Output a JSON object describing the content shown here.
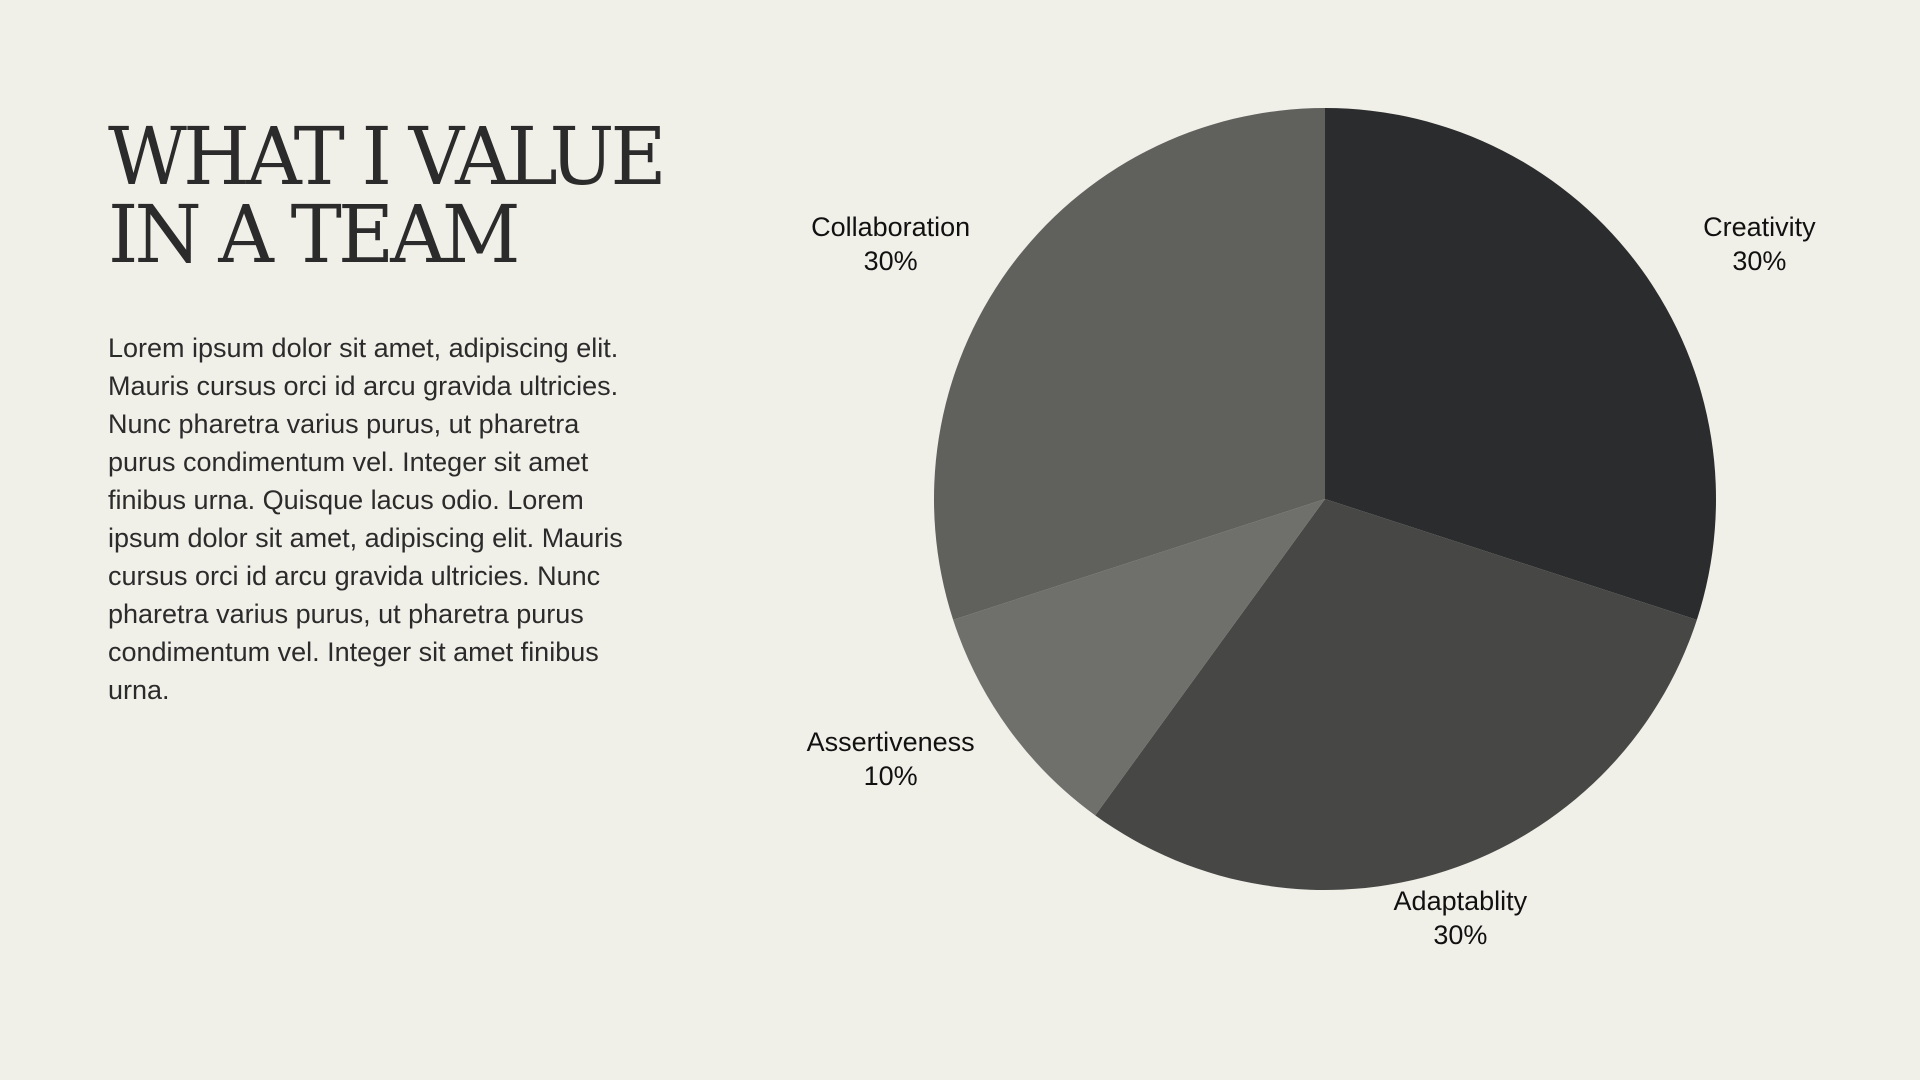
{
  "slide": {
    "title_lines": [
      "WHAT I VALUE",
      "IN A TEAM"
    ],
    "body": "Lorem ipsum dolor sit amet, adipiscing elit. Mauris cursus orci id arcu gravida ultricies. Nunc pharetra varius purus, ut pharetra purus condimentum vel. Integer sit amet finibus urna. Quisque lacus odio. Lorem ipsum dolor sit amet, adipiscing elit. Mauris cursus orci id arcu gravida ultricies. Nunc pharetra varius purus, ut pharetra purus condimentum vel. Integer sit amet finibus urna."
  },
  "chart_data": {
    "type": "pie",
    "categories": [
      "Creativity",
      "Adaptablity",
      "Assertiveness",
      "Collaboration"
    ],
    "values": [
      30,
      30,
      10,
      30
    ],
    "value_labels": [
      "30%",
      "30%",
      "10%",
      "30%"
    ],
    "colors": [
      "#2b2c2e",
      "#474745",
      "#6f706b",
      "#60605d"
    ],
    "start": "12 o'clock",
    "direction": "clockwise",
    "legend": "none"
  }
}
